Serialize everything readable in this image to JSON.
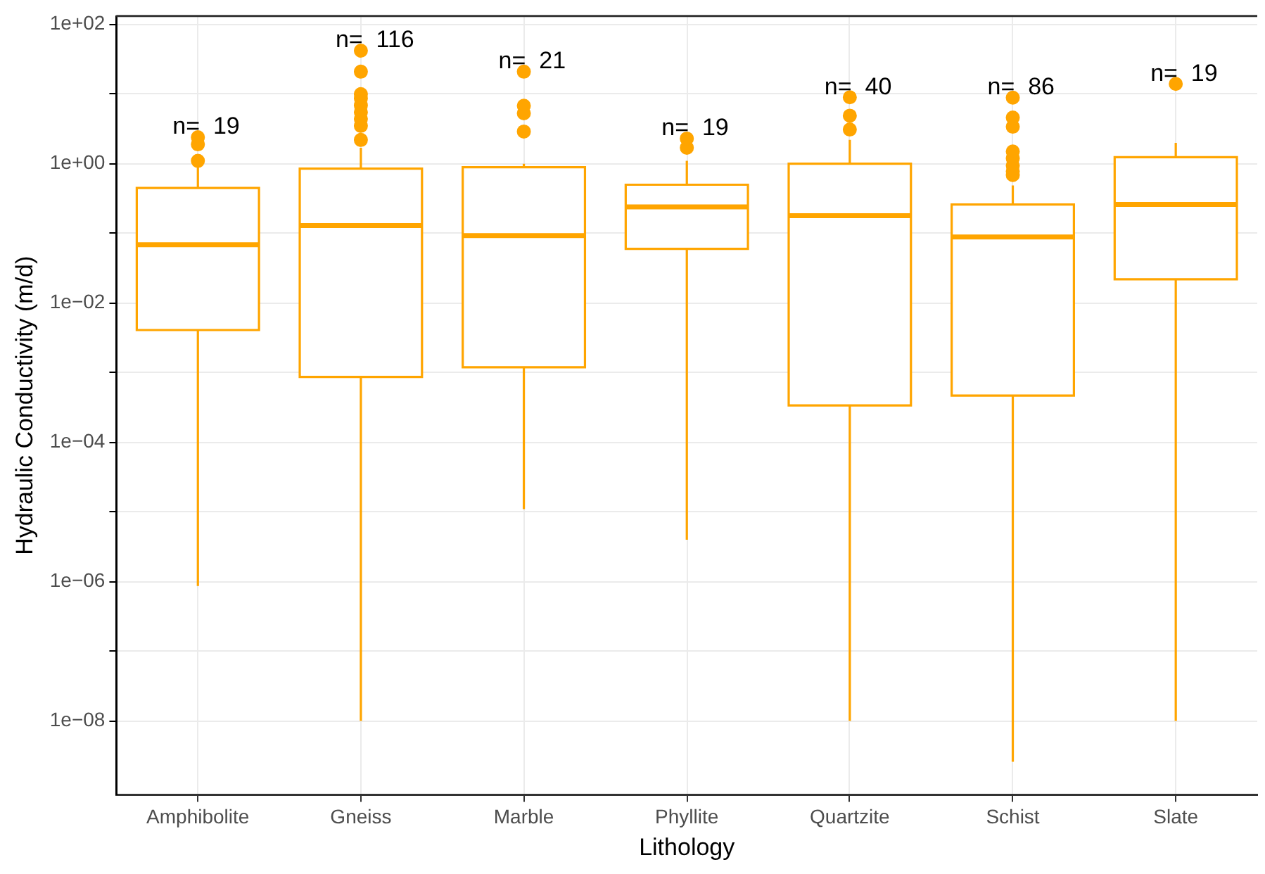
{
  "chart_data": {
    "type": "box",
    "xlabel": "Lithology",
    "ylabel": "Hydraulic Conductivity (m/d)",
    "log": "y",
    "grid": true,
    "marker": "circle",
    "color": "#ffa500",
    "categories": [
      "Amphibolite",
      "Gneiss",
      "Marble",
      "Phyllite",
      "Quartzite",
      "Schist",
      "Slate"
    ],
    "boxes": [
      {
        "low": 8.7e-07,
        "q1": 0.0041,
        "median": 0.069,
        "q3": 0.45,
        "high": 0.95,
        "outliers": [
          1.1,
          1.9,
          2.4
        ]
      },
      {
        "low": 1e-08,
        "q1": 0.00087,
        "median": 0.13,
        "q3": 0.85,
        "high": 1.7,
        "outliers": [
          2.2,
          3.5,
          4.4,
          5.5,
          6.9,
          8.7,
          10,
          21,
          42
        ]
      },
      {
        "low": 1.1e-05,
        "q1": 0.0012,
        "median": 0.093,
        "q3": 0.89,
        "high": 1.0,
        "outliers": [
          2.9,
          5.3,
          6.8,
          21
        ]
      },
      {
        "low": 4e-06,
        "q1": 0.06,
        "median": 0.24,
        "q3": 0.5,
        "high": 1.1,
        "outliers": [
          1.7,
          2.3
        ]
      },
      {
        "low": 1e-08,
        "q1": 0.00034,
        "median": 0.18,
        "q3": 1.0,
        "high": 2.2,
        "outliers": [
          3.1,
          4.9,
          9
        ]
      },
      {
        "low": 2.6e-09,
        "q1": 0.00047,
        "median": 0.089,
        "q3": 0.26,
        "high": 0.49,
        "outliers": [
          0.69,
          0.78,
          0.94,
          1.2,
          1.5,
          3.4,
          4.6,
          8.9
        ]
      },
      {
        "low": 1e-08,
        "q1": 0.022,
        "median": 0.26,
        "q3": 1.24,
        "high": 2.0,
        "outliers": [
          14
        ]
      }
    ],
    "ylim": [
      8.7e-10,
      132
    ],
    "yticks": [
      {
        "value": 1e-08,
        "label": "1e−08"
      },
      {
        "value": 1e-07,
        "label": null
      },
      {
        "value": 1e-06,
        "label": "1e−06"
      },
      {
        "value": 1e-05,
        "label": null
      },
      {
        "value": 0.0001,
        "label": "1e−04"
      },
      {
        "value": 0.001,
        "label": null
      },
      {
        "value": 0.01,
        "label": "1e−02"
      },
      {
        "value": 0.1,
        "label": null
      },
      {
        "value": 1,
        "label": "1e+00"
      },
      {
        "value": 10,
        "label": null
      },
      {
        "value": 100,
        "label": "1e+02"
      }
    ],
    "annotations": [
      "n=  19",
      "n=  116",
      "n=  21",
      "n=  19",
      "n=  40",
      "n=  86",
      "n=  19"
    ]
  }
}
